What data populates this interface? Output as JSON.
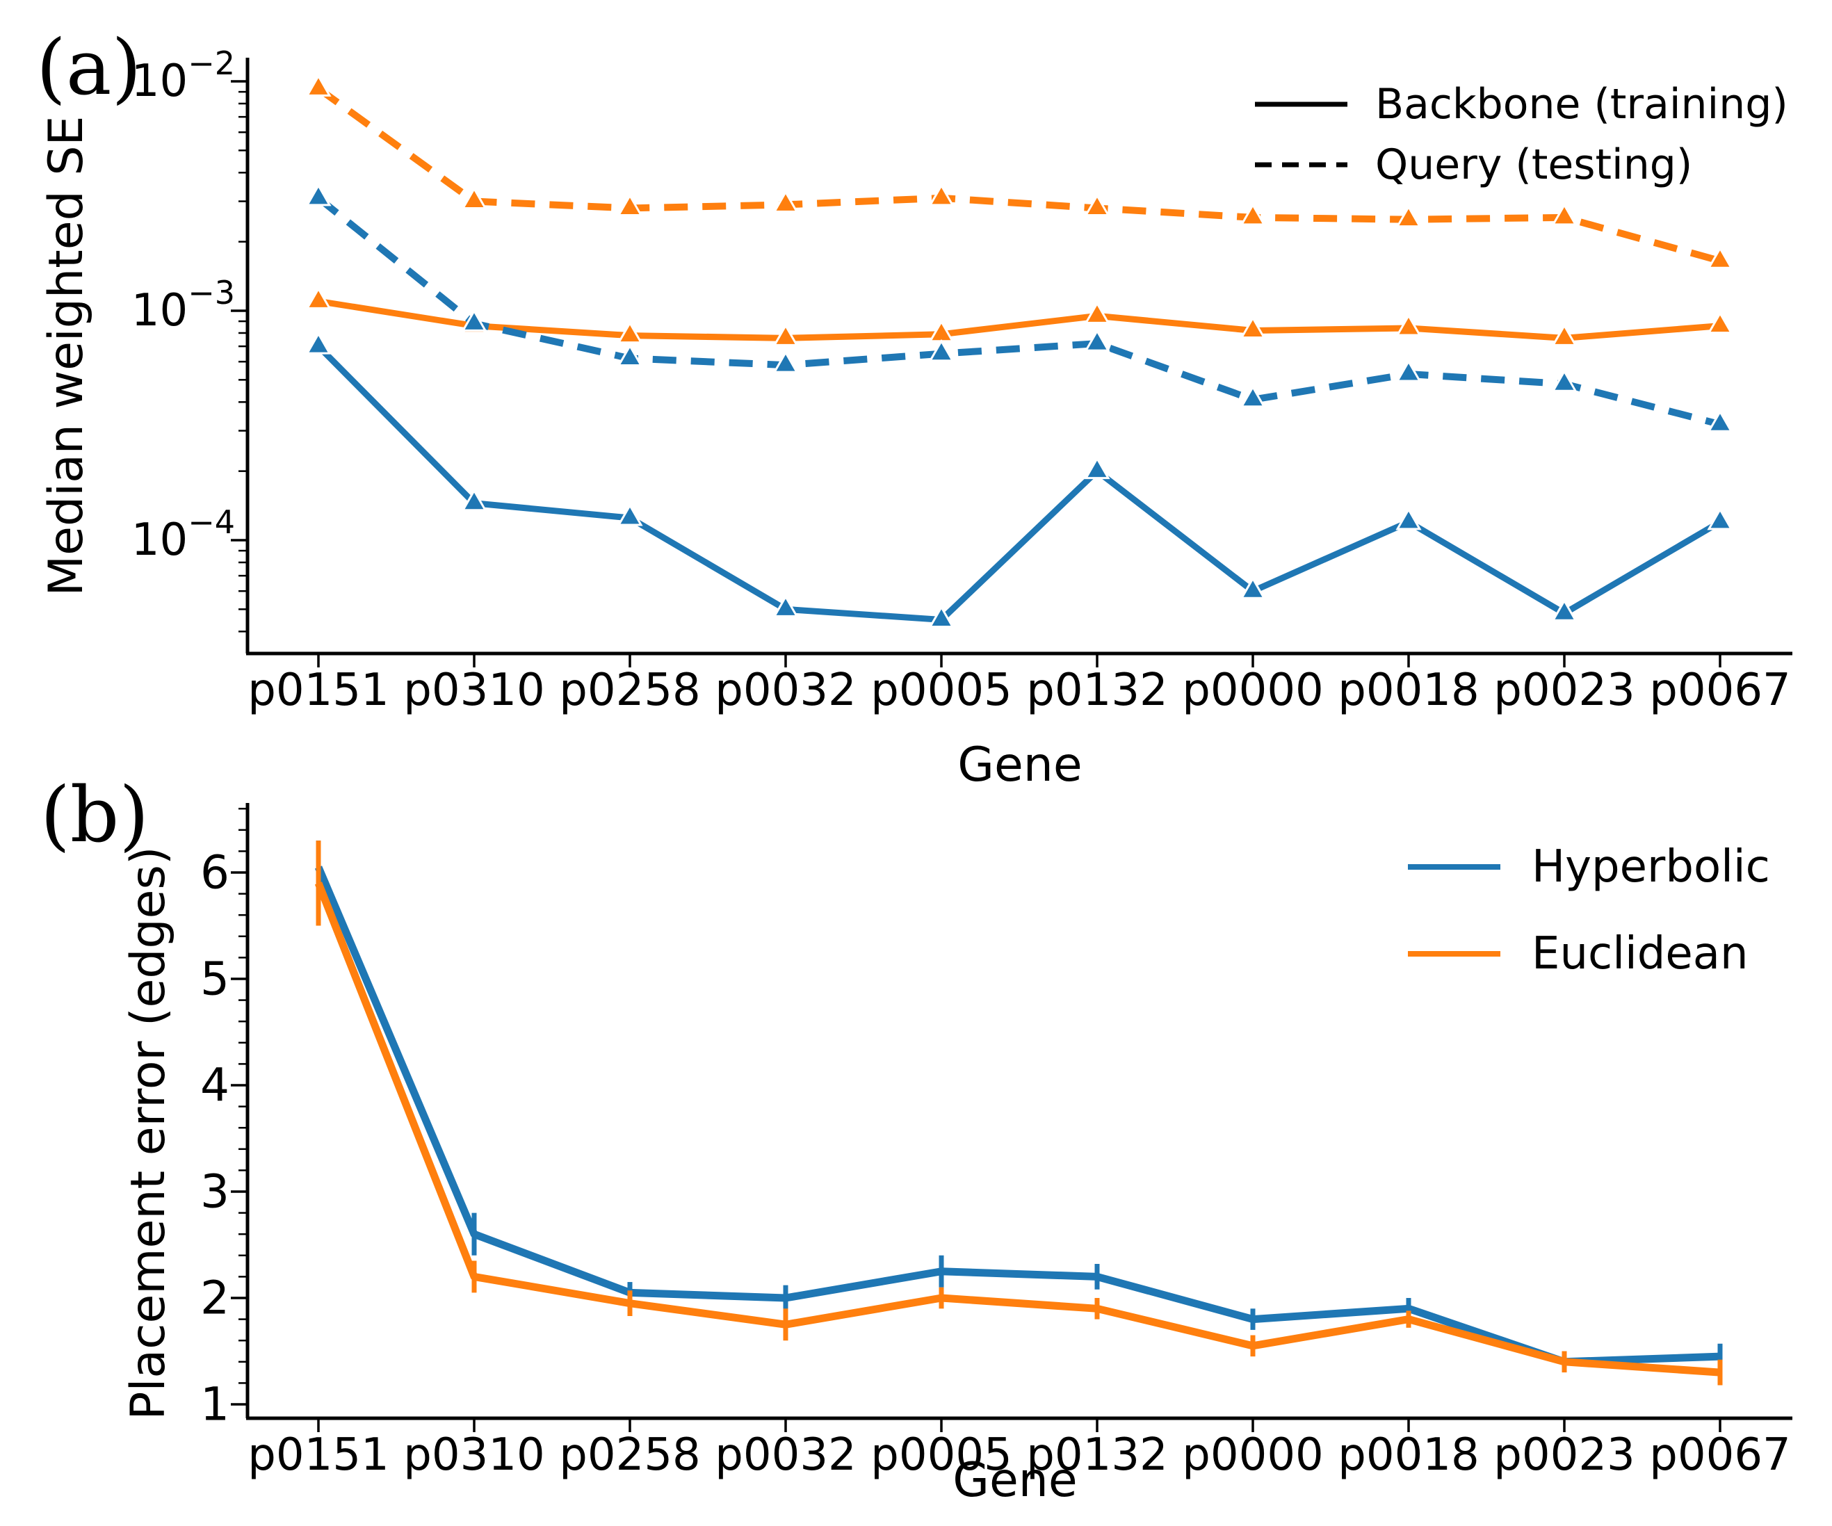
{
  "colors": {
    "hyperbolic": "#1f77b4",
    "euclidean": "#ff7f0e",
    "axis": "#000000"
  },
  "chart_data": [
    {
      "type": "line",
      "panel_tag": "(a)",
      "xlabel": "Gene",
      "ylabel": "Median weighted SE",
      "yscale": "log",
      "ylim": [
        3.2e-05,
        0.0127
      ],
      "categories": [
        "p0151",
        "p0310",
        "p0258",
        "p0032",
        "p0005",
        "p0132",
        "p0000",
        "p0018",
        "p0023",
        "p0067"
      ],
      "yticks": [
        {
          "value": 0.01,
          "base": "10",
          "exp": "−2"
        },
        {
          "value": 0.001,
          "base": "10",
          "exp": "−3"
        },
        {
          "value": 0.0001,
          "base": "10",
          "exp": "−4"
        }
      ],
      "legend": [
        {
          "label": "Backbone (training)",
          "style": "solid"
        },
        {
          "label": "Query (testing)",
          "style": "dashed"
        }
      ],
      "series": [
        {
          "name": "hyperbolic-backbone",
          "color": "#1f77b4",
          "style": "solid",
          "marker": "triangle-up",
          "values": [
            0.0007,
            0.000145,
            0.000125,
            5e-05,
            4.5e-05,
            0.0002,
            6e-05,
            0.00012,
            4.8e-05,
            0.00012
          ]
        },
        {
          "name": "euclidean-backbone",
          "color": "#ff7f0e",
          "style": "solid",
          "marker": "triangle-up",
          "values": [
            0.0011,
            0.00086,
            0.00078,
            0.00076,
            0.00079,
            0.00095,
            0.00082,
            0.00084,
            0.00076,
            0.00086
          ]
        },
        {
          "name": "hyperbolic-query",
          "color": "#1f77b4",
          "style": "dashed",
          "marker": "triangle-up",
          "values": [
            0.0031,
            0.00088,
            0.00062,
            0.00058,
            0.00065,
            0.00072,
            0.00041,
            0.00053,
            0.00048,
            0.00032
          ]
        },
        {
          "name": "euclidean-query",
          "color": "#ff7f0e",
          "style": "dashed",
          "marker": "triangle-up",
          "values": [
            0.0093,
            0.003,
            0.0028,
            0.0029,
            0.0031,
            0.0028,
            0.00255,
            0.0025,
            0.00255,
            0.00165
          ]
        }
      ]
    },
    {
      "type": "line",
      "panel_tag": "(b)",
      "xlabel": "Gene",
      "ylabel": "Placement error (edges)",
      "yscale": "linear",
      "ylim": [
        0.87,
        6.65
      ],
      "categories": [
        "p0151",
        "p0310",
        "p0258",
        "p0032",
        "p0005",
        "p0132",
        "p0000",
        "p0018",
        "p0023",
        "p0067"
      ],
      "yticks": [
        {
          "value": 6,
          "label": "6"
        },
        {
          "value": 5,
          "label": "5"
        },
        {
          "value": 4,
          "label": "4"
        },
        {
          "value": 3,
          "label": "3"
        },
        {
          "value": 2,
          "label": "2"
        },
        {
          "value": 1,
          "label": "1"
        }
      ],
      "legend": [
        {
          "label": "Hyperbolic",
          "color": "#1f77b4"
        },
        {
          "label": "Euclidean",
          "color": "#ff7f0e"
        }
      ],
      "series": [
        {
          "name": "hyperbolic",
          "color": "#1f77b4",
          "style": "solid",
          "values": [
            6.05,
            2.6,
            2.05,
            2.0,
            2.25,
            2.2,
            1.8,
            1.9,
            1.4,
            1.45
          ],
          "errors": [
            0.25,
            0.2,
            0.1,
            0.12,
            0.15,
            0.12,
            0.1,
            0.1,
            0.08,
            0.12
          ]
        },
        {
          "name": "euclidean",
          "color": "#ff7f0e",
          "style": "solid",
          "values": [
            5.9,
            2.2,
            1.95,
            1.75,
            2.0,
            1.9,
            1.55,
            1.8,
            1.4,
            1.3
          ],
          "errors": [
            0.4,
            0.15,
            0.12,
            0.15,
            0.1,
            0.1,
            0.1,
            0.08,
            0.1,
            0.12
          ]
        }
      ]
    }
  ]
}
